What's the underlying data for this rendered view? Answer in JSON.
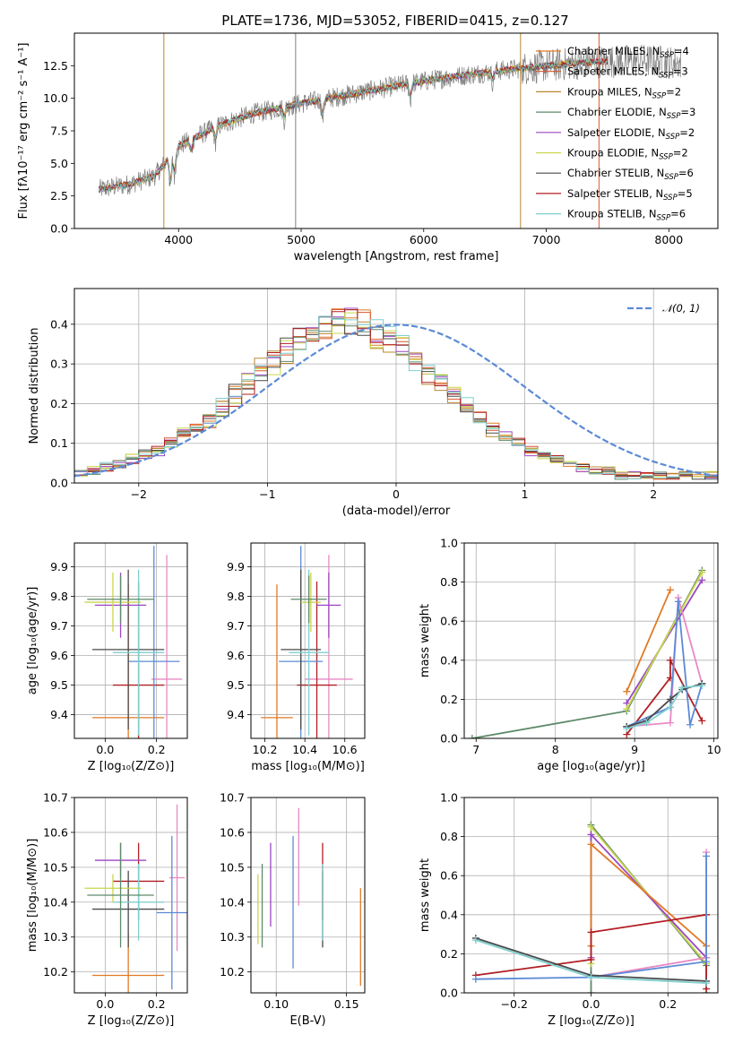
{
  "colors": [
    "#e07a25",
    "#d9572f",
    "#b8882e",
    "#5e8a6a",
    "#9b47c4",
    "#c9d64a",
    "#4a4a4a",
    "#b21e23",
    "#7fcfcf"
  ],
  "chart_data": [
    {
      "id": "spectrum",
      "type": "line",
      "title": "PLATE=1736, MJD=53052, FIBERID=0415, z=0.127",
      "xlabel": "wavelength [Angstrom, rest frame]",
      "ylabel": "Flux [fλ10⁻¹⁷ erg cm⁻² s⁻¹ A⁻¹]",
      "xlim": [
        3150,
        8400
      ],
      "ylim": [
        0,
        15
      ],
      "xticks": [
        4000,
        5000,
        6000,
        7000,
        8000
      ],
      "yticks": [
        0.0,
        2.5,
        5.0,
        7.5,
        10.0,
        12.5
      ],
      "legend_position": "upper-right",
      "legend": [
        {
          "label": "Chabrier MILES, N",
          "sub": "SSP",
          "suffix": "=4",
          "color": "#e07a25"
        },
        {
          "label": "Salpeter MILES, N",
          "sub": "SSP",
          "suffix": "=3",
          "color": "#d9572f"
        },
        {
          "label": "Kroupa MILES, N",
          "sub": "SSP",
          "suffix": "=2",
          "color": "#b8882e"
        },
        {
          "label": "Chabrier ELODIE, N",
          "sub": "SSP",
          "suffix": "=3",
          "color": "#5e8a6a"
        },
        {
          "label": "Salpeter ELODIE, N",
          "sub": "SSP",
          "suffix": "=2",
          "color": "#9b47c4"
        },
        {
          "label": "Kroupa ELODIE, N",
          "sub": "SSP",
          "suffix": "=2",
          "color": "#c9d64a"
        },
        {
          "label": "Chabrier STELIB, N",
          "sub": "SSP",
          "suffix": "=6",
          "color": "#4a4a4a"
        },
        {
          "label": "Salpeter STELIB, N",
          "sub": "SSP",
          "suffix": "=5",
          "color": "#b21e23"
        },
        {
          "label": "Kroupa STELIB, N",
          "sub": "SSP",
          "suffix": "=6",
          "color": "#7fcfcf"
        }
      ],
      "continuum": {
        "x": [
          3350,
          3600,
          3800,
          4000,
          4300,
          4600,
          5000,
          5400,
          5800,
          6200,
          6600,
          7000,
          7400,
          7800,
          8100
        ],
        "y": [
          3.0,
          3.4,
          4.0,
          6.3,
          7.8,
          8.8,
          9.6,
          10.3,
          11.0,
          11.6,
          12.1,
          12.5,
          12.8,
          12.9,
          12.7
        ]
      }
    },
    {
      "id": "residuals",
      "type": "step",
      "xlabel": "(data-model)/error",
      "ylabel": "Normed distribution",
      "xlim": [
        -2.5,
        2.5
      ],
      "ylim": [
        0,
        0.49
      ],
      "xticks": [
        -2,
        -1,
        0,
        1,
        2
      ],
      "yticks": [
        0.0,
        0.1,
        0.2,
        0.3,
        0.4
      ],
      "legend": "𝒩(0, 1)",
      "legend_position": "upper-right",
      "gaussian_color": "#5b8ad6",
      "bin_width": 0.1,
      "hist_base": [
        0.02,
        0.03,
        0.04,
        0.05,
        0.06,
        0.07,
        0.08,
        0.1,
        0.12,
        0.14,
        0.16,
        0.19,
        0.22,
        0.25,
        0.28,
        0.31,
        0.34,
        0.36,
        0.38,
        0.4,
        0.41,
        0.41,
        0.4,
        0.38,
        0.36,
        0.34,
        0.31,
        0.28,
        0.25,
        0.22,
        0.19,
        0.16,
        0.14,
        0.12,
        0.1,
        0.08,
        0.07,
        0.06,
        0.05,
        0.04,
        0.03,
        0.03,
        0.02,
        0.02,
        0.02,
        0.02,
        0.02,
        0.02,
        0.02,
        0.02
      ]
    },
    {
      "id": "age-vs-z",
      "type": "errorbar",
      "xlabel": "Z [log₁₀(Z/Z⊙)]",
      "ylabel": "age  [log₁₀(age/yr)]",
      "xlim": [
        -0.12,
        0.32
      ],
      "ylim": [
        9.32,
        9.98
      ],
      "xticks": [
        0.0,
        0.2
      ],
      "yticks": [
        9.4,
        9.5,
        9.6,
        9.7,
        9.8,
        9.9
      ],
      "points": [
        {
          "x": 0.09,
          "xerr": 0.14,
          "y": 9.39,
          "yerr": 0.45,
          "color": "#e07a25"
        },
        {
          "x": 0.24,
          "xerr": 0.06,
          "y": 9.52,
          "yerr": 0.42,
          "color": "#e889c4"
        },
        {
          "x": 0.13,
          "xerr": 0.1,
          "y": 9.5,
          "yerr": 0.35,
          "color": "#b21e23"
        },
        {
          "x": 0.19,
          "xerr": 0.1,
          "y": 9.58,
          "yerr": 0.39,
          "color": "#5b8ad6"
        },
        {
          "x": 0.09,
          "xerr": 0.14,
          "y": 9.62,
          "yerr": 0.27,
          "color": "#4a4a4a"
        },
        {
          "x": 0.13,
          "xerr": 0.1,
          "y": 9.61,
          "yerr": 0.28,
          "color": "#7fcfcf"
        },
        {
          "x": 0.06,
          "xerr": 0.1,
          "y": 9.77,
          "yerr": 0.11,
          "color": "#9b47c4"
        },
        {
          "x": 0.03,
          "xerr": 0.11,
          "y": 9.78,
          "yerr": 0.1,
          "color": "#c9d64a"
        },
        {
          "x": 0.06,
          "xerr": 0.13,
          "y": 9.79,
          "yerr": 0.08,
          "color": "#5e8a6a"
        }
      ]
    },
    {
      "id": "age-vs-mass",
      "type": "errorbar",
      "xlabel": "mass [log₁₀(M/M⊙)]",
      "ylabel": "",
      "xlim": [
        10.13,
        10.7
      ],
      "ylim": [
        9.32,
        9.98
      ],
      "xticks": [
        10.2,
        10.4,
        10.6
      ],
      "yticks": [
        9.4,
        9.5,
        9.6,
        9.7,
        9.8,
        9.9
      ],
      "points": [
        {
          "x": 10.26,
          "xerr": 0.08,
          "y": 9.39,
          "yerr": 0.45,
          "color": "#e07a25"
        },
        {
          "x": 10.52,
          "xerr": 0.12,
          "y": 9.52,
          "yerr": 0.42,
          "color": "#e889c4"
        },
        {
          "x": 10.46,
          "xerr": 0.1,
          "y": 9.5,
          "yerr": 0.35,
          "color": "#b21e23"
        },
        {
          "x": 10.38,
          "xerr": 0.11,
          "y": 9.58,
          "yerr": 0.39,
          "color": "#5b8ad6"
        },
        {
          "x": 10.38,
          "xerr": 0.1,
          "y": 9.62,
          "yerr": 0.27,
          "color": "#4a4a4a"
        },
        {
          "x": 10.42,
          "xerr": 0.1,
          "y": 9.61,
          "yerr": 0.28,
          "color": "#7fcfcf"
        },
        {
          "x": 10.52,
          "xerr": 0.06,
          "y": 9.77,
          "yerr": 0.11,
          "color": "#9b47c4"
        },
        {
          "x": 10.43,
          "xerr": 0.05,
          "y": 9.78,
          "yerr": 0.1,
          "color": "#c9d64a"
        },
        {
          "x": 10.42,
          "xerr": 0.09,
          "y": 9.79,
          "yerr": 0.08,
          "color": "#5e8a6a"
        }
      ]
    },
    {
      "id": "weight-vs-age",
      "type": "line",
      "xlabel": "age  [log₁₀(age/yr)]",
      "ylabel": "mass weight",
      "xlim": [
        6.85,
        10.05
      ],
      "ylim": [
        0,
        1
      ],
      "xticks": [
        7,
        8,
        9,
        10
      ],
      "yticks": [
        0.0,
        0.2,
        0.4,
        0.6,
        0.8,
        1.0
      ],
      "series": [
        {
          "color": "#e07a25",
          "x": [
            8.9,
            9.45
          ],
          "y": [
            0.24,
            0.76
          ]
        },
        {
          "color": "#5e8a6a",
          "x": [
            6.95,
            8.9,
            9.85
          ],
          "y": [
            0.0,
            0.14,
            0.86
          ]
        },
        {
          "color": "#9b47c4",
          "x": [
            8.9,
            9.85
          ],
          "y": [
            0.18,
            0.81
          ]
        },
        {
          "color": "#c9d64a",
          "x": [
            8.9,
            9.85
          ],
          "y": [
            0.15,
            0.85
          ]
        },
        {
          "color": "#b21e23",
          "x": [
            8.9,
            9.45,
            9.45,
            9.85
          ],
          "y": [
            0.02,
            0.31,
            0.4,
            0.09
          ]
        },
        {
          "color": "#e889c4",
          "x": [
            8.9,
            9.45,
            9.55,
            9.85
          ],
          "y": [
            0.06,
            0.08,
            0.72,
            0.28
          ]
        },
        {
          "color": "#5b8ad6",
          "x": [
            8.9,
            9.45,
            9.55,
            9.7,
            9.85
          ],
          "y": [
            0.06,
            0.16,
            0.7,
            0.07,
            0.28
          ]
        },
        {
          "color": "#4a4a4a",
          "x": [
            8.9,
            9.15,
            9.45,
            9.6,
            9.85
          ],
          "y": [
            0.06,
            0.09,
            0.2,
            0.25,
            0.28
          ]
        },
        {
          "color": "#7fcfcf",
          "x": [
            8.9,
            9.15,
            9.45,
            9.6,
            9.85
          ],
          "y": [
            0.05,
            0.08,
            0.16,
            0.26,
            0.27
          ]
        }
      ]
    },
    {
      "id": "mass-vs-z",
      "type": "errorbar",
      "xlabel": "Z [log₁₀(Z/Z⊙)]",
      "ylabel": "mass [log₁₀(M/M⊙)]",
      "xlim": [
        -0.12,
        0.32
      ],
      "ylim": [
        10.14,
        10.7
      ],
      "xticks": [
        0.0,
        0.2
      ],
      "yticks": [
        10.2,
        10.3,
        10.4,
        10.5,
        10.6,
        10.7
      ],
      "points": [
        {
          "x": 0.09,
          "xerr": 0.14,
          "y": 10.19,
          "yerr": 0.12,
          "color": "#e07a25"
        },
        {
          "x": 0.28,
          "xerr": 0.03,
          "y": 10.47,
          "yerr": 0.21,
          "color": "#e889c4"
        },
        {
          "x": 0.13,
          "xerr": 0.1,
          "y": 10.46,
          "yerr": 0.11,
          "color": "#b21e23"
        },
        {
          "x": 0.26,
          "xerr": 0.06,
          "y": 10.37,
          "yerr": 0.22,
          "color": "#5b8ad6"
        },
        {
          "x": 0.09,
          "xerr": 0.14,
          "y": 10.38,
          "yerr": 0.11,
          "color": "#4a4a4a"
        },
        {
          "x": 0.13,
          "xerr": 0.1,
          "y": 10.4,
          "yerr": 0.11,
          "color": "#7fcfcf"
        },
        {
          "x": 0.06,
          "xerr": 0.1,
          "y": 10.52,
          "yerr": 0.05,
          "color": "#9b47c4"
        },
        {
          "x": 0.03,
          "xerr": 0.11,
          "y": 10.44,
          "yerr": 0.04,
          "color": "#c9d64a"
        },
        {
          "x": 0.06,
          "xerr": 0.13,
          "y": 10.42,
          "yerr": 0.15,
          "color": "#5e8a6a"
        }
      ]
    },
    {
      "id": "mass-vs-ebv",
      "type": "errorbar",
      "xlabel": "E(B-V)",
      "ylabel": "",
      "xlim": [
        0.082,
        0.163
      ],
      "ylim": [
        10.14,
        10.7
      ],
      "xticks": [
        0.1,
        0.15
      ],
      "yticks": [
        10.2,
        10.3,
        10.4,
        10.5,
        10.6,
        10.7
      ],
      "points": [
        {
          "x": 0.16,
          "y": 10.3,
          "yerr": 0.14,
          "color": "#e07a25"
        },
        {
          "x": 0.116,
          "y": 10.53,
          "yerr": 0.14,
          "color": "#e889c4"
        },
        {
          "x": 0.133,
          "y": 10.46,
          "yerr": 0.11,
          "color": "#b21e23"
        },
        {
          "x": 0.112,
          "y": 10.4,
          "yerr": 0.19,
          "color": "#5b8ad6"
        },
        {
          "x": 0.133,
          "y": 10.38,
          "yerr": 0.11,
          "color": "#4a4a4a"
        },
        {
          "x": 0.133,
          "y": 10.4,
          "yerr": 0.11,
          "color": "#7fcfcf"
        },
        {
          "x": 0.096,
          "y": 10.45,
          "yerr": 0.12,
          "color": "#9b47c4"
        },
        {
          "x": 0.087,
          "y": 10.38,
          "yerr": 0.1,
          "color": "#c9d64a"
        },
        {
          "x": 0.09,
          "y": 10.39,
          "yerr": 0.12,
          "color": "#5e8a6a"
        }
      ]
    },
    {
      "id": "weight-vs-z",
      "type": "line",
      "xlabel": "Z [log₁₀(Z/Z⊙)]",
      "ylabel": "mass weight",
      "xlim": [
        -0.33,
        0.33
      ],
      "ylim": [
        0,
        1
      ],
      "xticks": [
        -0.2,
        0.0,
        0.2
      ],
      "yticks": [
        0.0,
        0.2,
        0.4,
        0.6,
        0.8,
        1.0
      ],
      "series": [
        {
          "color": "#5e8a6a",
          "x": [
            0.0,
            0.0,
            0.3,
            0.3
          ],
          "y": [
            0.0,
            0.86,
            0.14,
            0.0
          ]
        },
        {
          "color": "#c9d64a",
          "x": [
            0.0,
            0.0,
            0.3
          ],
          "y": [
            0.15,
            0.85,
            0.15
          ]
        },
        {
          "color": "#9b47c4",
          "x": [
            0.0,
            0.0,
            0.3
          ],
          "y": [
            0.18,
            0.81,
            0.18
          ]
        },
        {
          "color": "#e07a25",
          "x": [
            0.0,
            0.0,
            0.3
          ],
          "y": [
            0.24,
            0.76,
            0.24
          ]
        },
        {
          "color": "#b21e23",
          "x": [
            -0.3,
            0.0,
            0.0,
            0.3,
            0.3
          ],
          "y": [
            0.09,
            0.17,
            0.31,
            0.4,
            0.02
          ]
        },
        {
          "color": "#e889c4",
          "x": [
            0.0,
            0.3,
            0.3
          ],
          "y": [
            0.08,
            0.18,
            0.72
          ]
        },
        {
          "color": "#5b8ad6",
          "x": [
            -0.3,
            0.0,
            0.3,
            0.3
          ],
          "y": [
            0.07,
            0.08,
            0.16,
            0.7
          ]
        },
        {
          "color": "#4a4a4a",
          "x": [
            -0.3,
            0.0,
            0.3
          ],
          "y": [
            0.28,
            0.09,
            0.06
          ]
        },
        {
          "color": "#7fcfcf",
          "x": [
            -0.3,
            0.0,
            0.3
          ],
          "y": [
            0.27,
            0.08,
            0.05
          ]
        }
      ]
    }
  ]
}
